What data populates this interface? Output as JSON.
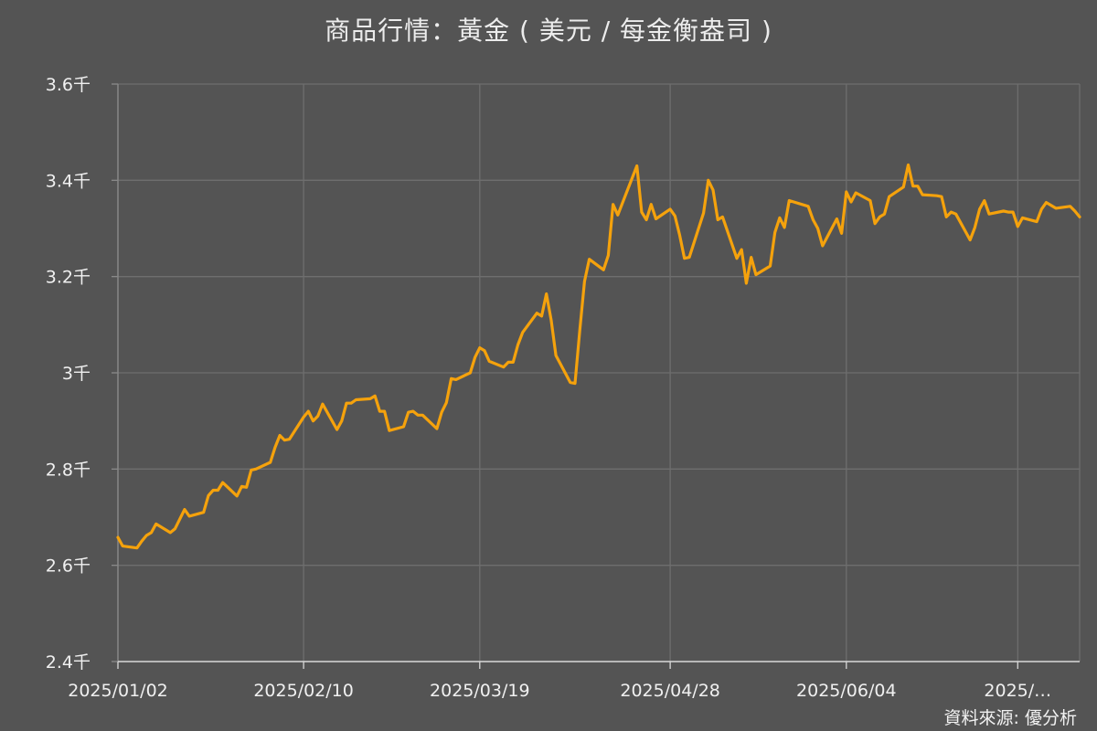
{
  "chart_data": {
    "type": "line",
    "title": "商品行情：黃金 ( 美元 / 每金衡盎司 )",
    "source": "資料來源: 優分析",
    "xlabel": "",
    "ylabel": "",
    "ylim": [
      2400,
      3600
    ],
    "y_ticks": [
      2400,
      2600,
      2800,
      3000,
      3200,
      3400,
      3600
    ],
    "y_tick_labels": [
      "2.4千",
      "2.6千",
      "2.8千",
      "3千",
      "3.2千",
      "3.4千",
      "3.6千"
    ],
    "x_range": [
      "2025-01-02",
      "2025-07-23"
    ],
    "x_ticks": [
      "2025-01-02",
      "2025-02-10",
      "2025-03-19",
      "2025-04-28",
      "2025-06-04",
      "2025-07-10"
    ],
    "x_tick_labels": [
      "2025/01/02",
      "2025/02/10",
      "2025/03/19",
      "2025/04/28",
      "2025/06/04",
      "2025/…"
    ],
    "grid": true,
    "line_color": "#f5a20c",
    "x": [
      "2025-01-02",
      "2025-01-03",
      "2025-01-06",
      "2025-01-07",
      "2025-01-08",
      "2025-01-09",
      "2025-01-10",
      "2025-01-13",
      "2025-01-14",
      "2025-01-15",
      "2025-01-16",
      "2025-01-17",
      "2025-01-20",
      "2025-01-21",
      "2025-01-22",
      "2025-01-23",
      "2025-01-24",
      "2025-01-27",
      "2025-01-28",
      "2025-01-29",
      "2025-01-30",
      "2025-01-31",
      "2025-02-03",
      "2025-02-04",
      "2025-02-05",
      "2025-02-06",
      "2025-02-07",
      "2025-02-10",
      "2025-02-11",
      "2025-02-12",
      "2025-02-13",
      "2025-02-14",
      "2025-02-17",
      "2025-02-18",
      "2025-02-19",
      "2025-02-20",
      "2025-02-21",
      "2025-02-24",
      "2025-02-25",
      "2025-02-26",
      "2025-02-27",
      "2025-02-28",
      "2025-03-03",
      "2025-03-04",
      "2025-03-05",
      "2025-03-06",
      "2025-03-07",
      "2025-03-10",
      "2025-03-11",
      "2025-03-12",
      "2025-03-13",
      "2025-03-14",
      "2025-03-17",
      "2025-03-18",
      "2025-03-19",
      "2025-03-20",
      "2025-03-21",
      "2025-03-24",
      "2025-03-25",
      "2025-03-26",
      "2025-03-27",
      "2025-03-28",
      "2025-03-31",
      "2025-04-01",
      "2025-04-02",
      "2025-04-03",
      "2025-04-04",
      "2025-04-07",
      "2025-04-08",
      "2025-04-09",
      "2025-04-10",
      "2025-04-11",
      "2025-04-14",
      "2025-04-15",
      "2025-04-16",
      "2025-04-17",
      "2025-04-21",
      "2025-04-22",
      "2025-04-23",
      "2025-04-24",
      "2025-04-25",
      "2025-04-28",
      "2025-04-29",
      "2025-04-30",
      "2025-05-01",
      "2025-05-02",
      "2025-05-05",
      "2025-05-06",
      "2025-05-07",
      "2025-05-08",
      "2025-05-09",
      "2025-05-12",
      "2025-05-13",
      "2025-05-14",
      "2025-05-15",
      "2025-05-16",
      "2025-05-19",
      "2025-05-20",
      "2025-05-21",
      "2025-05-22",
      "2025-05-23",
      "2025-05-27",
      "2025-05-28",
      "2025-05-29",
      "2025-05-30",
      "2025-06-02",
      "2025-06-03",
      "2025-06-04",
      "2025-06-05",
      "2025-06-06",
      "2025-06-09",
      "2025-06-10",
      "2025-06-11",
      "2025-06-12",
      "2025-06-13",
      "2025-06-16",
      "2025-06-17",
      "2025-06-18",
      "2025-06-19",
      "2025-06-20",
      "2025-06-23",
      "2025-06-24",
      "2025-06-25",
      "2025-06-26",
      "2025-06-27",
      "2025-06-30",
      "2025-07-01",
      "2025-07-02",
      "2025-07-03",
      "2025-07-04",
      "2025-07-07",
      "2025-07-08",
      "2025-07-09",
      "2025-07-10",
      "2025-07-11",
      "2025-07-14",
      "2025-07-15",
      "2025-07-16",
      "2025-07-17",
      "2025-07-18",
      "2025-07-21",
      "2025-07-22",
      "2025-07-23"
    ],
    "series": [
      {
        "values": [
          2658,
          2640,
          2636,
          2650,
          2662,
          2668,
          2686,
          2668,
          2676,
          2696,
          2716,
          2702,
          2710,
          2745,
          2756,
          2756,
          2772,
          2744,
          2764,
          2762,
          2798,
          2800,
          2814,
          2845,
          2870,
          2860,
          2862,
          2908,
          2920,
          2900,
          2910,
          2935,
          2882,
          2900,
          2937,
          2937,
          2944,
          2946,
          2952,
          2920,
          2920,
          2880,
          2888,
          2918,
          2920,
          2912,
          2912,
          2884,
          2918,
          2938,
          2988,
          2986,
          3000,
          3032,
          3052,
          3046,
          3024,
          3012,
          3022,
          3022,
          3058,
          3084,
          3124,
          3118,
          3164,
          3110,
          3036,
          2980,
          2978,
          3088,
          3190,
          3236,
          3214,
          3244,
          3350,
          3328,
          3430,
          3334,
          3318,
          3350,
          3320,
          3340,
          3326,
          3286,
          3238,
          3240,
          3332,
          3400,
          3380,
          3318,
          3324,
          3238,
          3256,
          3186,
          3240,
          3204,
          3222,
          3292,
          3322,
          3302,
          3358,
          3346,
          3318,
          3300,
          3264,
          3320,
          3290,
          3376,
          3355,
          3374,
          3358,
          3310,
          3324,
          3330,
          3366,
          3386,
          3432,
          3388,
          3388,
          3370,
          3368,
          3366,
          3324,
          3334,
          3330,
          3276,
          3302,
          3340,
          3358,
          3330,
          3336,
          3334,
          3334,
          3304,
          3322,
          3314,
          3340,
          3354,
          3348,
          3342,
          3346,
          3336,
          3324
        ]
      }
    ]
  }
}
